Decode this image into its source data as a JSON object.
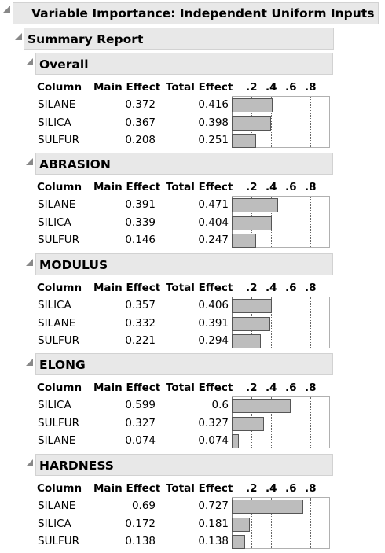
{
  "report_title": "Variable Importance: Independent Uniform Inputs",
  "summary_title": "Summary Report",
  "columns": {
    "column": "Column",
    "main_effect": "Main Effect",
    "total_effect": "Total Effect"
  },
  "axis_ticks": [
    ".2",
    ".4",
    ".6",
    ".8"
  ],
  "sections": [
    {
      "title": "Overall",
      "rows": [
        {
          "name": "SILANE",
          "main": "0.372",
          "total": "0.416",
          "value": 0.416
        },
        {
          "name": "SILICA",
          "main": "0.367",
          "total": "0.398",
          "value": 0.398
        },
        {
          "name": "SULFUR",
          "main": "0.208",
          "total": "0.251",
          "value": 0.251
        }
      ]
    },
    {
      "title": "ABRASION",
      "rows": [
        {
          "name": "SILANE",
          "main": "0.391",
          "total": "0.471",
          "value": 0.471
        },
        {
          "name": "SILICA",
          "main": "0.339",
          "total": "0.404",
          "value": 0.404
        },
        {
          "name": "SULFUR",
          "main": "0.146",
          "total": "0.247",
          "value": 0.247
        }
      ]
    },
    {
      "title": "MODULUS",
      "rows": [
        {
          "name": "SILICA",
          "main": "0.357",
          "total": "0.406",
          "value": 0.406
        },
        {
          "name": "SILANE",
          "main": "0.332",
          "total": "0.391",
          "value": 0.391
        },
        {
          "name": "SULFUR",
          "main": "0.221",
          "total": "0.294",
          "value": 0.294
        }
      ]
    },
    {
      "title": "ELONG",
      "rows": [
        {
          "name": "SILICA",
          "main": "0.599",
          "total": "0.6",
          "value": 0.6
        },
        {
          "name": "SULFUR",
          "main": "0.327",
          "total": "0.327",
          "value": 0.327
        },
        {
          "name": "SILANE",
          "main": "0.074",
          "total": "0.074",
          "value": 0.074
        }
      ]
    },
    {
      "title": "HARDNESS",
      "rows": [
        {
          "name": "SILANE",
          "main": "0.69",
          "total": "0.727",
          "value": 0.727
        },
        {
          "name": "SILICA",
          "main": "0.172",
          "total": "0.181",
          "value": 0.181
        },
        {
          "name": "SULFUR",
          "main": "0.138",
          "total": "0.138",
          "value": 0.138
        }
      ]
    }
  ]
}
